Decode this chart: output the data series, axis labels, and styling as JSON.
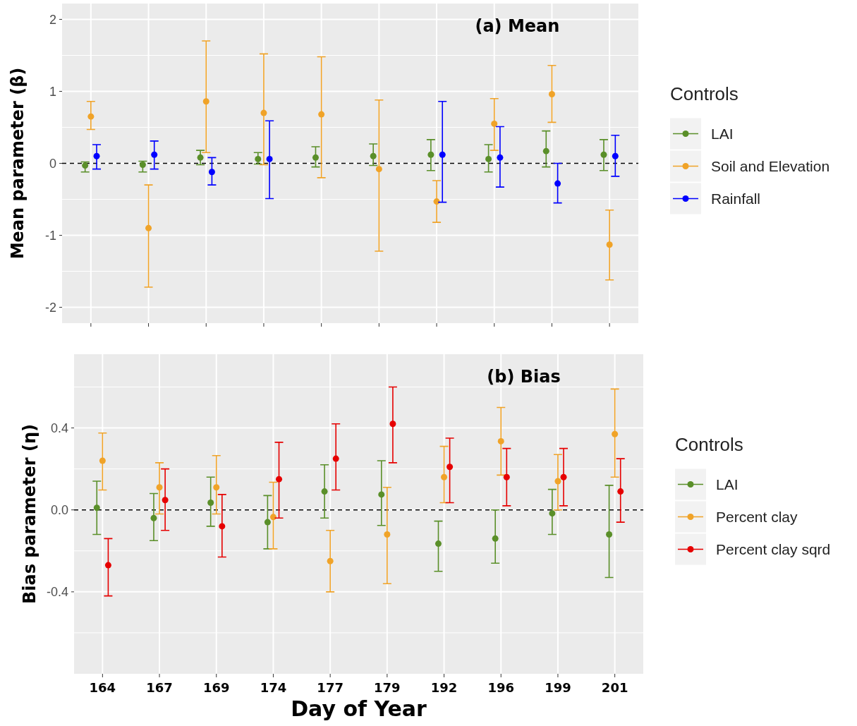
{
  "chart_data": [
    {
      "type": "scatter",
      "title": "(a) Mean",
      "ylabel": "Mean parameter (β)",
      "legend_title": "Controls",
      "legend": "right",
      "grid": true,
      "marker": "circle",
      "tick_labels": "y",
      "categories": [
        null,
        null,
        null,
        null,
        null,
        null,
        null,
        null,
        null,
        null
      ],
      "ylim": [
        -2.22,
        2.22
      ],
      "yticks": [
        -2,
        -1,
        0,
        1,
        2
      ],
      "ref_lines": [
        {
          "axis": "y",
          "value": 0,
          "color": "#000000",
          "line_style": "dashed"
        }
      ],
      "series": [
        {
          "name": "LAI",
          "color": "#5a8f29",
          "values": [
            -0.03,
            -0.02,
            0.08,
            0.06,
            0.08,
            0.1,
            0.12,
            0.06,
            0.17,
            0.12
          ],
          "errors": [
            [
              -0.12,
              0.02
            ],
            [
              -0.12,
              0.03
            ],
            [
              -0.02,
              0.18
            ],
            [
              -0.01,
              0.15
            ],
            [
              -0.05,
              0.23
            ],
            [
              -0.03,
              0.27
            ],
            [
              -0.1,
              0.33
            ],
            [
              -0.12,
              0.26
            ],
            [
              -0.05,
              0.45
            ],
            [
              -0.1,
              0.33
            ]
          ]
        },
        {
          "name": "Soil and Elevation",
          "color": "#f0a328",
          "values": [
            0.65,
            -0.9,
            0.86,
            0.7,
            0.68,
            -0.08,
            -0.53,
            0.55,
            0.96,
            -1.13
          ],
          "errors": [
            [
              0.47,
              0.86
            ],
            [
              -1.72,
              -0.3
            ],
            [
              0.15,
              1.7
            ],
            [
              -0.02,
              1.52
            ],
            [
              -0.2,
              1.48
            ],
            [
              -1.22,
              0.88
            ],
            [
              -0.82,
              -0.24
            ],
            [
              0.18,
              0.9
            ],
            [
              0.57,
              1.36
            ],
            [
              -1.62,
              -0.65
            ]
          ]
        },
        {
          "name": "Rainfall",
          "color": "#0000ff",
          "values": [
            0.1,
            0.12,
            -0.12,
            0.06,
            null,
            null,
            0.12,
            0.08,
            -0.28,
            0.1
          ],
          "errors": [
            [
              -0.08,
              0.26
            ],
            [
              -0.08,
              0.31
            ],
            [
              -0.3,
              0.08
            ],
            [
              -0.49,
              0.59
            ],
            null,
            null,
            [
              -0.54,
              0.86
            ],
            [
              -0.33,
              0.51
            ],
            [
              -0.55,
              0
            ],
            [
              -0.18,
              0.39
            ]
          ]
        }
      ]
    },
    {
      "type": "scatter",
      "title": "(b) Bias",
      "xlabel": "Day of Year",
      "ylabel": "Bias parameter (η)",
      "legend_title": "Controls",
      "legend": "right",
      "grid": true,
      "marker": "circle",
      "categories": [
        "164",
        "167",
        "169",
        "174",
        "177",
        "179",
        "192",
        "196",
        "199",
        "201"
      ],
      "ylim": [
        -0.8,
        0.76
      ],
      "yticks": [
        {
          "value": -0.4,
          "label": "-0.4"
        },
        {
          "value": 0,
          "label": "0.0"
        },
        {
          "value": 0.4,
          "label": "0.4"
        }
      ],
      "ref_lines": [
        {
          "axis": "y",
          "value": 0,
          "color": "#000000",
          "line_style": "dashed"
        }
      ],
      "series": [
        {
          "name": "LAI",
          "color": "#5a8f29",
          "values": [
            0.01,
            -0.04,
            0.035,
            -0.06,
            0.09,
            0.075,
            -0.165,
            -0.14,
            -0.017,
            -0.12
          ],
          "errors": [
            [
              -0.12,
              0.14
            ],
            [
              -0.15,
              0.08
            ],
            [
              -0.08,
              0.16
            ],
            [
              -0.19,
              0.07
            ],
            [
              -0.04,
              0.22
            ],
            [
              -0.076,
              0.24
            ],
            [
              -0.3,
              -0.055
            ],
            [
              -0.26,
              0
            ],
            [
              -0.12,
              0.1
            ],
            [
              -0.33,
              0.12
            ]
          ]
        },
        {
          "name": "Percent clay",
          "color": "#f0a328",
          "values": [
            0.24,
            0.11,
            0.11,
            -0.035,
            -0.25,
            -0.12,
            0.16,
            0.335,
            0.14,
            0.37
          ],
          "errors": [
            [
              0.097,
              0.375
            ],
            [
              -0.02,
              0.23
            ],
            [
              -0.02,
              0.265
            ],
            [
              -0.19,
              0.135
            ],
            [
              -0.4,
              -0.1
            ],
            [
              -0.36,
              0.11
            ],
            [
              0.035,
              0.31
            ],
            [
              0.17,
              0.5
            ],
            [
              0,
              0.27
            ],
            [
              0.16,
              0.59
            ]
          ]
        },
        {
          "name": "Percent clay sqrd",
          "color": "#e60000",
          "values": [
            -0.27,
            0.048,
            -0.08,
            0.15,
            0.25,
            0.42,
            0.21,
            0.16,
            0.16,
            0.09
          ],
          "errors": [
            [
              -0.42,
              -0.14
            ],
            [
              -0.1,
              0.2
            ],
            [
              -0.23,
              0.075
            ],
            [
              -0.04,
              0.33
            ],
            [
              0.097,
              0.42
            ],
            [
              0.23,
              0.6
            ],
            [
              0.035,
              0.35
            ],
            [
              0.02,
              0.3
            ],
            [
              0.02,
              0.3
            ],
            [
              -0.06,
              0.25
            ]
          ]
        }
      ]
    }
  ]
}
